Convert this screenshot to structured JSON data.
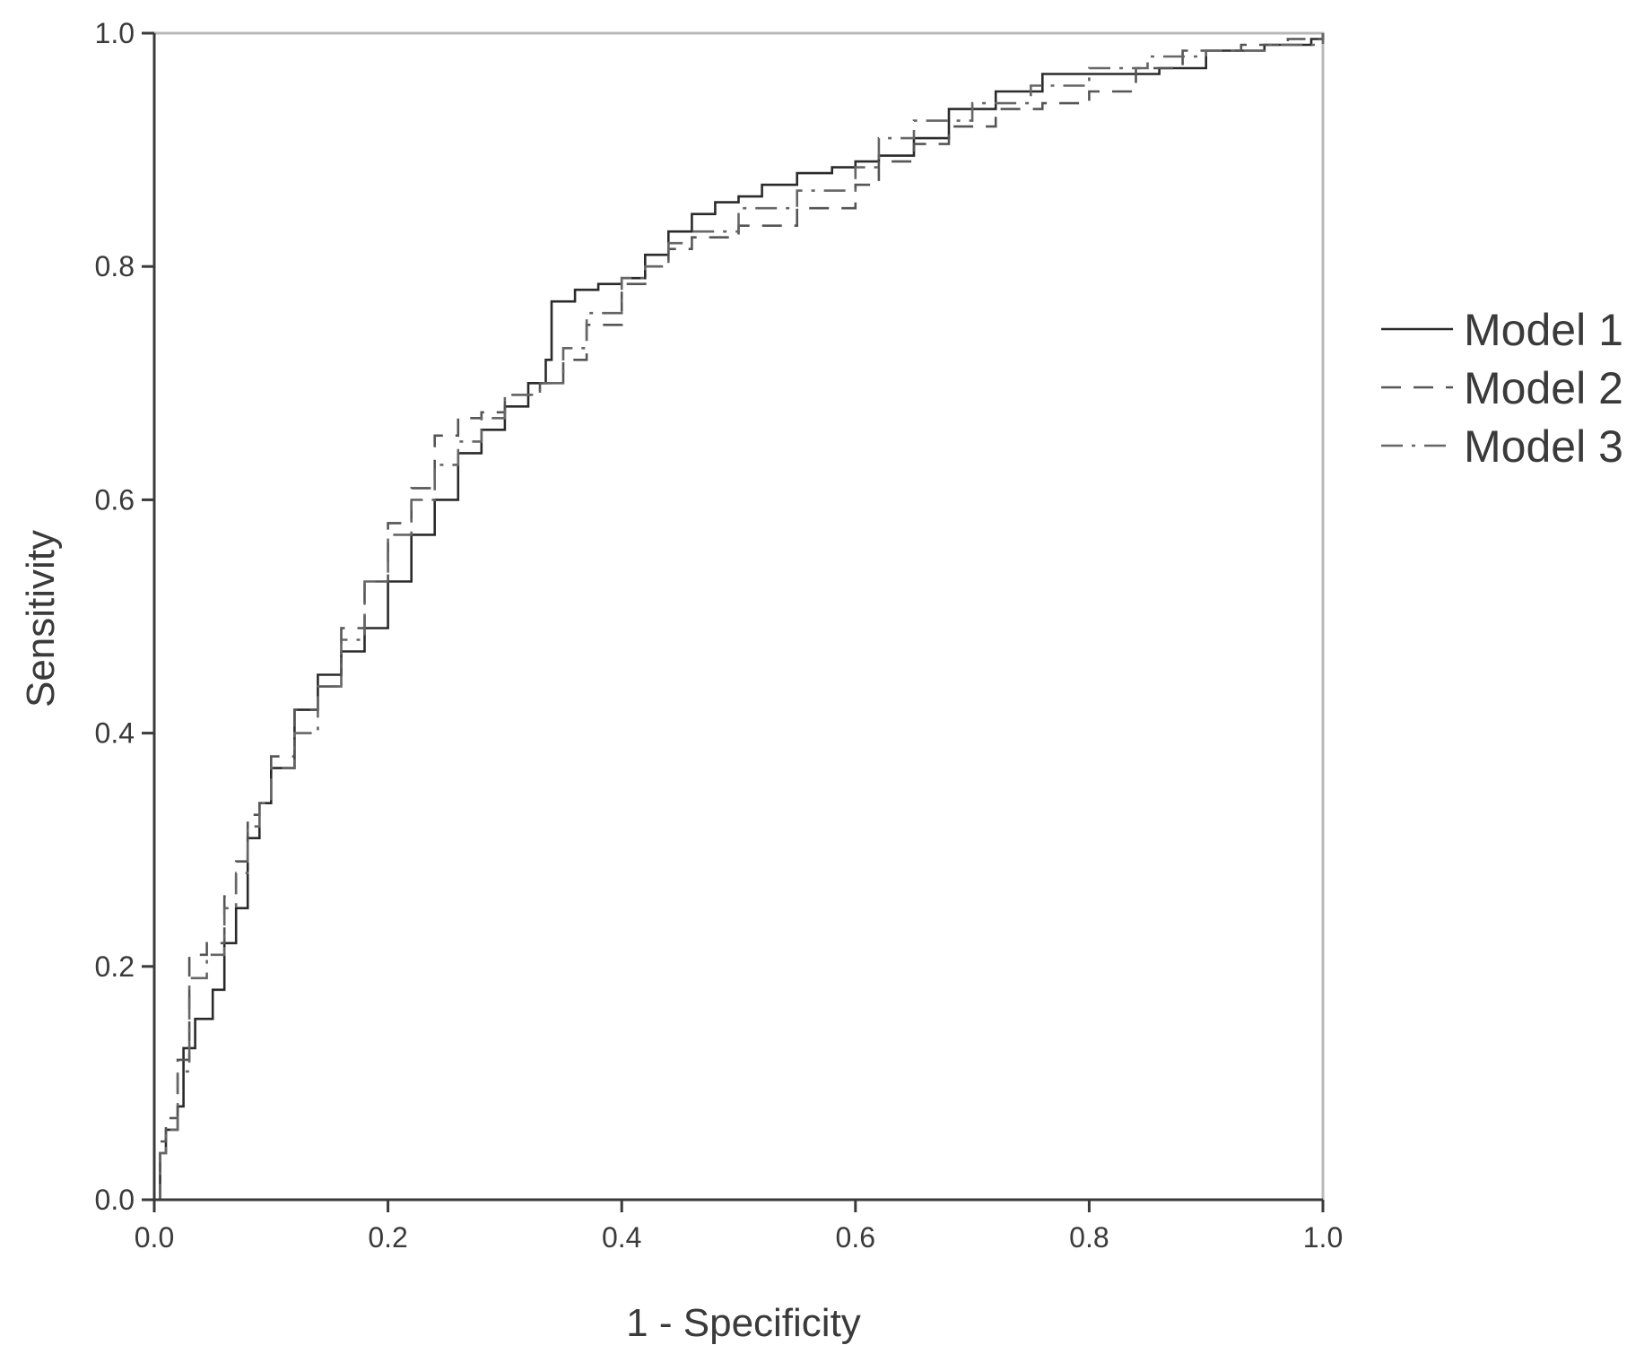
{
  "chart_data": {
    "type": "line",
    "title": "",
    "xlabel": "1 - Specificity",
    "ylabel": "Sensitivity",
    "xlim": [
      0,
      1
    ],
    "ylim": [
      0,
      1
    ],
    "xticks": [
      "0.0",
      "0.2",
      "0.4",
      "0.6",
      "0.8",
      "1.0"
    ],
    "yticks": [
      "0.0",
      "0.2",
      "0.4",
      "0.6",
      "0.8",
      "1.0"
    ],
    "grid": false,
    "legend_position": "right",
    "series": [
      {
        "name": "Model 1",
        "style": "solid",
        "color": "#2a2a2a",
        "points": [
          [
            0,
            0
          ],
          [
            0.005,
            0.04
          ],
          [
            0.01,
            0.06
          ],
          [
            0.02,
            0.08
          ],
          [
            0.025,
            0.13
          ],
          [
            0.035,
            0.155
          ],
          [
            0.05,
            0.18
          ],
          [
            0.06,
            0.22
          ],
          [
            0.07,
            0.25
          ],
          [
            0.08,
            0.31
          ],
          [
            0.09,
            0.34
          ],
          [
            0.1,
            0.37
          ],
          [
            0.12,
            0.42
          ],
          [
            0.14,
            0.45
          ],
          [
            0.16,
            0.47
          ],
          [
            0.18,
            0.49
          ],
          [
            0.2,
            0.53
          ],
          [
            0.22,
            0.57
          ],
          [
            0.24,
            0.6
          ],
          [
            0.26,
            0.64
          ],
          [
            0.28,
            0.66
          ],
          [
            0.3,
            0.68
          ],
          [
            0.32,
            0.7
          ],
          [
            0.335,
            0.72
          ],
          [
            0.34,
            0.77
          ],
          [
            0.36,
            0.78
          ],
          [
            0.38,
            0.785
          ],
          [
            0.4,
            0.79
          ],
          [
            0.42,
            0.81
          ],
          [
            0.44,
            0.83
          ],
          [
            0.46,
            0.845
          ],
          [
            0.48,
            0.855
          ],
          [
            0.5,
            0.86
          ],
          [
            0.52,
            0.87
          ],
          [
            0.55,
            0.88
          ],
          [
            0.58,
            0.885
          ],
          [
            0.6,
            0.89
          ],
          [
            0.62,
            0.895
          ],
          [
            0.65,
            0.91
          ],
          [
            0.68,
            0.935
          ],
          [
            0.72,
            0.95
          ],
          [
            0.76,
            0.965
          ],
          [
            0.8,
            0.965
          ],
          [
            0.86,
            0.97
          ],
          [
            0.9,
            0.985
          ],
          [
            0.95,
            0.99
          ],
          [
            0.99,
            0.995
          ],
          [
            1,
            1
          ]
        ]
      },
      {
        "name": "Model 2",
        "style": "dashed",
        "color": "#555555",
        "points": [
          [
            0,
            0
          ],
          [
            0.005,
            0.05
          ],
          [
            0.01,
            0.07
          ],
          [
            0.02,
            0.12
          ],
          [
            0.03,
            0.21
          ],
          [
            0.045,
            0.22
          ],
          [
            0.06,
            0.26
          ],
          [
            0.07,
            0.29
          ],
          [
            0.08,
            0.33
          ],
          [
            0.09,
            0.34
          ],
          [
            0.1,
            0.38
          ],
          [
            0.12,
            0.42
          ],
          [
            0.14,
            0.44
          ],
          [
            0.16,
            0.49
          ],
          [
            0.18,
            0.53
          ],
          [
            0.2,
            0.58
          ],
          [
            0.22,
            0.61
          ],
          [
            0.24,
            0.655
          ],
          [
            0.26,
            0.67
          ],
          [
            0.28,
            0.675
          ],
          [
            0.3,
            0.69
          ],
          [
            0.33,
            0.7
          ],
          [
            0.35,
            0.72
          ],
          [
            0.37,
            0.75
          ],
          [
            0.4,
            0.785
          ],
          [
            0.42,
            0.8
          ],
          [
            0.44,
            0.815
          ],
          [
            0.46,
            0.825
          ],
          [
            0.5,
            0.835
          ],
          [
            0.55,
            0.85
          ],
          [
            0.6,
            0.87
          ],
          [
            0.62,
            0.89
          ],
          [
            0.65,
            0.905
          ],
          [
            0.68,
            0.92
          ],
          [
            0.72,
            0.935
          ],
          [
            0.76,
            0.94
          ],
          [
            0.8,
            0.95
          ],
          [
            0.84,
            0.97
          ],
          [
            0.88,
            0.985
          ],
          [
            0.93,
            0.99
          ],
          [
            0.97,
            0.995
          ],
          [
            1,
            1
          ]
        ]
      },
      {
        "name": "Model 3",
        "style": "dashdot",
        "color": "#666666",
        "points": [
          [
            0,
            0
          ],
          [
            0.005,
            0.04
          ],
          [
            0.01,
            0.06
          ],
          [
            0.02,
            0.11
          ],
          [
            0.03,
            0.19
          ],
          [
            0.045,
            0.21
          ],
          [
            0.06,
            0.25
          ],
          [
            0.07,
            0.28
          ],
          [
            0.08,
            0.32
          ],
          [
            0.09,
            0.34
          ],
          [
            0.1,
            0.37
          ],
          [
            0.12,
            0.4
          ],
          [
            0.14,
            0.44
          ],
          [
            0.16,
            0.48
          ],
          [
            0.18,
            0.53
          ],
          [
            0.2,
            0.57
          ],
          [
            0.22,
            0.6
          ],
          [
            0.24,
            0.63
          ],
          [
            0.26,
            0.65
          ],
          [
            0.28,
            0.67
          ],
          [
            0.3,
            0.69
          ],
          [
            0.33,
            0.7
          ],
          [
            0.35,
            0.73
          ],
          [
            0.37,
            0.76
          ],
          [
            0.4,
            0.79
          ],
          [
            0.42,
            0.8
          ],
          [
            0.44,
            0.82
          ],
          [
            0.46,
            0.83
          ],
          [
            0.5,
            0.85
          ],
          [
            0.55,
            0.865
          ],
          [
            0.6,
            0.885
          ],
          [
            0.62,
            0.91
          ],
          [
            0.65,
            0.925
          ],
          [
            0.7,
            0.94
          ],
          [
            0.75,
            0.955
          ],
          [
            0.8,
            0.97
          ],
          [
            0.85,
            0.98
          ],
          [
            0.9,
            0.985
          ],
          [
            0.95,
            0.99
          ],
          [
            1,
            1
          ]
        ]
      }
    ]
  }
}
